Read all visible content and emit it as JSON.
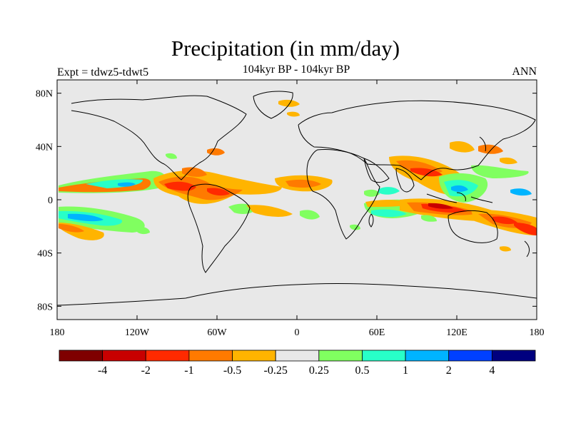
{
  "title": "Precipitation (in mm/day)",
  "subtitle": "104kyr BP - 104kyr BP",
  "left_label": "Expt = tdwz5-tdwt5",
  "right_label": "ANN",
  "map": {
    "lon_range": [
      -180,
      180
    ],
    "lat_range": [
      -90,
      90
    ],
    "background_color": "#e8e8e8",
    "x_ticks": [
      {
        "value": -180,
        "label": "180"
      },
      {
        "value": -120,
        "label": "120W"
      },
      {
        "value": -60,
        "label": "60W"
      },
      {
        "value": 0,
        "label": "0"
      },
      {
        "value": 60,
        "label": "60E"
      },
      {
        "value": 120,
        "label": "120E"
      },
      {
        "value": 180,
        "label": "180"
      }
    ],
    "y_ticks": [
      {
        "value": 80,
        "label": "80N"
      },
      {
        "value": 40,
        "label": "40N"
      },
      {
        "value": 0,
        "label": "0"
      },
      {
        "value": -40,
        "label": "40S"
      },
      {
        "value": -80,
        "label": "80S"
      }
    ]
  },
  "colorbar": {
    "colors": [
      "#7f0000",
      "#c80000",
      "#ff2a00",
      "#ff7a00",
      "#ffb400",
      "#e8e8e8",
      "#80ff60",
      "#28ffc8",
      "#00b4ff",
      "#0040ff",
      "#00007f"
    ],
    "labels": [
      "-4",
      "-2",
      "-1",
      "-0.5",
      "-0.25",
      "0.25",
      "0.5",
      "1",
      "2",
      "4"
    ]
  }
}
